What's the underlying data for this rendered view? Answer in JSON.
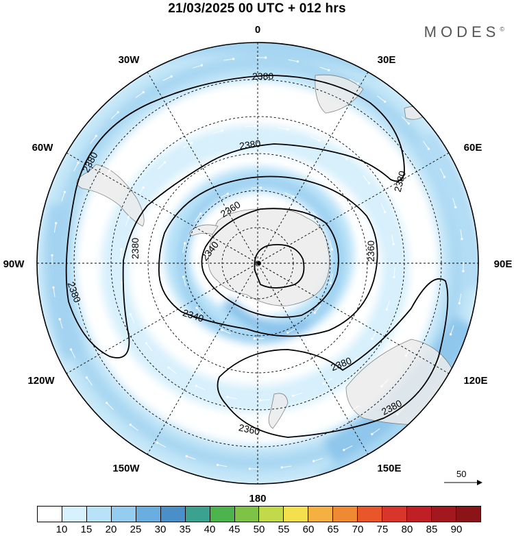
{
  "title": "21/03/2025  00 UTC  + 012 hrs",
  "brand": "MODES",
  "brand_mark": "©",
  "longitude_labels": [
    "0",
    "30E",
    "60E",
    "90E",
    "120E",
    "150E",
    "180",
    "150W",
    "120W",
    "90W",
    "60W",
    "30W"
  ],
  "contour_labels": [
    "2380",
    "2380",
    "2380",
    "2380",
    "2380",
    "2380",
    "2380",
    "2380",
    "2360",
    "2360",
    "2360",
    "2340",
    "2340"
  ],
  "reference_vector": "50",
  "colorbar": {
    "labels": [
      "10",
      "15",
      "20",
      "25",
      "30",
      "35",
      "40",
      "45",
      "50",
      "55",
      "60",
      "65",
      "70",
      "75",
      "80",
      "85",
      "90"
    ],
    "colors": [
      "#ffffff",
      "#d7f1fd",
      "#b8e2f8",
      "#95cdf0",
      "#6aaee0",
      "#4b8fc9",
      "#3aa28f",
      "#4db34d",
      "#7fc346",
      "#c2d94a",
      "#f4e04d",
      "#f5b042",
      "#ef8a32",
      "#e8562a",
      "#d9352a",
      "#c01f26",
      "#a3171e",
      "#8a1418"
    ]
  },
  "icons": {
    "reference_arrow": "right-arrow-icon"
  }
}
